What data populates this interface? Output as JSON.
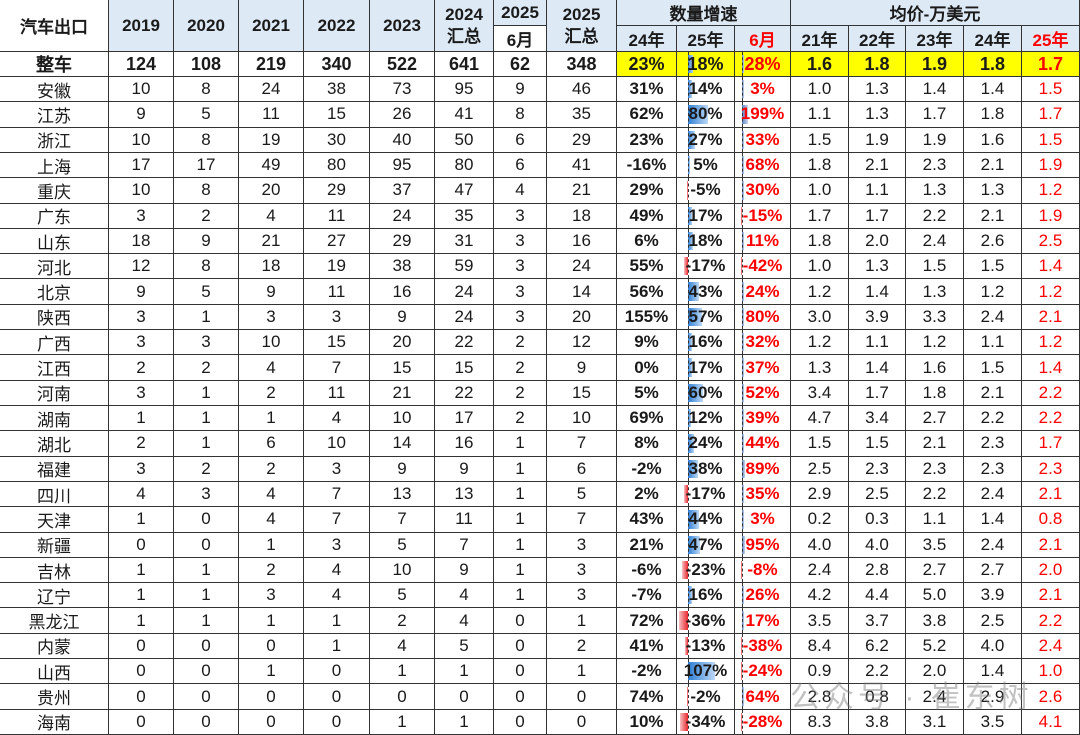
{
  "chart_data": {
    "type": "table",
    "corner_label": "汽车出口",
    "year_headers": [
      "2019",
      "2020",
      "2021",
      "2022",
      "2023"
    ],
    "col_2024": {
      "top": "2024",
      "bottom": "汇总"
    },
    "col_2025_jun": {
      "top": "2025",
      "bottom": "6月"
    },
    "col_2025": {
      "top": "2025",
      "bottom": "汇总"
    },
    "growth_group": "数量增速",
    "growth_headers": [
      "24年",
      "25年",
      "6月"
    ],
    "price_group": "均价-万美元",
    "price_headers": [
      "21年",
      "22年",
      "23年",
      "24年",
      "25年"
    ],
    "highlight_color": "#ffff00",
    "accent_red": "#ff0000",
    "header_bg": "#dde9f5",
    "rows": [
      {
        "name": "整车",
        "vals": [
          "124",
          "108",
          "219",
          "340",
          "522",
          "641",
          "62",
          "348"
        ],
        "g": [
          "23%",
          "18%",
          "28%"
        ],
        "p": [
          "1.6",
          "1.8",
          "1.9",
          "1.8",
          "1.7"
        ]
      },
      {
        "name": "安徽",
        "vals": [
          "10",
          "8",
          "24",
          "38",
          "73",
          "95",
          "9",
          "46"
        ],
        "g": [
          "31%",
          "14%",
          "3%"
        ],
        "p": [
          "1.0",
          "1.3",
          "1.4",
          "1.4",
          "1.5"
        ]
      },
      {
        "name": "江苏",
        "vals": [
          "9",
          "5",
          "11",
          "15",
          "26",
          "41",
          "8",
          "35"
        ],
        "g": [
          "62%",
          "80%",
          "199%"
        ],
        "p": [
          "1.1",
          "1.3",
          "1.7",
          "1.8",
          "1.7"
        ]
      },
      {
        "name": "浙江",
        "vals": [
          "10",
          "8",
          "19",
          "30",
          "40",
          "50",
          "6",
          "29"
        ],
        "g": [
          "23%",
          "27%",
          "33%"
        ],
        "p": [
          "1.5",
          "1.9",
          "1.9",
          "1.6",
          "1.5"
        ]
      },
      {
        "name": "上海",
        "vals": [
          "17",
          "17",
          "49",
          "80",
          "95",
          "80",
          "6",
          "41"
        ],
        "g": [
          "-16%",
          "5%",
          "68%"
        ],
        "p": [
          "1.8",
          "2.1",
          "2.3",
          "2.1",
          "1.9"
        ]
      },
      {
        "name": "重庆",
        "vals": [
          "10",
          "8",
          "20",
          "29",
          "37",
          "47",
          "4",
          "21"
        ],
        "g": [
          "29%",
          "-5%",
          "30%"
        ],
        "p": [
          "1.0",
          "1.1",
          "1.3",
          "1.3",
          "1.2"
        ]
      },
      {
        "name": "广东",
        "vals": [
          "3",
          "2",
          "4",
          "11",
          "24",
          "35",
          "3",
          "18"
        ],
        "g": [
          "49%",
          "17%",
          "-15%"
        ],
        "p": [
          "1.7",
          "1.7",
          "2.2",
          "2.1",
          "1.9"
        ]
      },
      {
        "name": "山东",
        "vals": [
          "18",
          "9",
          "21",
          "27",
          "29",
          "31",
          "3",
          "16"
        ],
        "g": [
          "6%",
          "18%",
          "11%"
        ],
        "p": [
          "1.8",
          "2.0",
          "2.4",
          "2.6",
          "2.5"
        ]
      },
      {
        "name": "河北",
        "vals": [
          "12",
          "8",
          "18",
          "19",
          "38",
          "59",
          "3",
          "24"
        ],
        "g": [
          "55%",
          "-17%",
          "-42%"
        ],
        "p": [
          "1.0",
          "1.3",
          "1.5",
          "1.5",
          "1.4"
        ]
      },
      {
        "name": "北京",
        "vals": [
          "9",
          "5",
          "9",
          "11",
          "16",
          "24",
          "3",
          "14"
        ],
        "g": [
          "56%",
          "43%",
          "24%"
        ],
        "p": [
          "1.2",
          "1.4",
          "1.3",
          "1.2",
          "1.2"
        ]
      },
      {
        "name": "陕西",
        "vals": [
          "3",
          "1",
          "3",
          "3",
          "9",
          "24",
          "3",
          "20"
        ],
        "g": [
          "155%",
          "57%",
          "80%"
        ],
        "p": [
          "3.0",
          "3.9",
          "3.3",
          "2.4",
          "2.1"
        ]
      },
      {
        "name": "广西",
        "vals": [
          "3",
          "3",
          "10",
          "15",
          "20",
          "22",
          "2",
          "12"
        ],
        "g": [
          "9%",
          "16%",
          "32%"
        ],
        "p": [
          "1.2",
          "1.1",
          "1.2",
          "1.1",
          "1.2"
        ]
      },
      {
        "name": "江西",
        "vals": [
          "2",
          "2",
          "4",
          "7",
          "15",
          "15",
          "2",
          "9"
        ],
        "g": [
          "0%",
          "17%",
          "37%"
        ],
        "p": [
          "1.3",
          "1.4",
          "1.6",
          "1.5",
          "1.4"
        ]
      },
      {
        "name": "河南",
        "vals": [
          "3",
          "1",
          "2",
          "11",
          "21",
          "22",
          "2",
          "15"
        ],
        "g": [
          "5%",
          "60%",
          "52%"
        ],
        "p": [
          "3.4",
          "1.7",
          "1.8",
          "2.1",
          "2.2"
        ]
      },
      {
        "name": "湖南",
        "vals": [
          "1",
          "1",
          "1",
          "4",
          "10",
          "17",
          "2",
          "10"
        ],
        "g": [
          "69%",
          "12%",
          "39%"
        ],
        "p": [
          "4.7",
          "3.4",
          "2.7",
          "2.2",
          "2.2"
        ]
      },
      {
        "name": "湖北",
        "vals": [
          "2",
          "1",
          "6",
          "10",
          "14",
          "16",
          "1",
          "7"
        ],
        "g": [
          "8%",
          "24%",
          "44%"
        ],
        "p": [
          "1.5",
          "1.5",
          "2.1",
          "2.3",
          "1.7"
        ]
      },
      {
        "name": "福建",
        "vals": [
          "3",
          "2",
          "2",
          "3",
          "9",
          "9",
          "1",
          "6"
        ],
        "g": [
          "-2%",
          "38%",
          "89%"
        ],
        "p": [
          "2.5",
          "2.3",
          "2.3",
          "2.3",
          "2.3"
        ]
      },
      {
        "name": "四川",
        "vals": [
          "4",
          "3",
          "4",
          "7",
          "13",
          "13",
          "1",
          "5"
        ],
        "g": [
          "2%",
          "-17%",
          "35%"
        ],
        "p": [
          "2.9",
          "2.5",
          "2.2",
          "2.4",
          "2.1"
        ]
      },
      {
        "name": "天津",
        "vals": [
          "1",
          "0",
          "4",
          "7",
          "7",
          "11",
          "1",
          "7"
        ],
        "g": [
          "43%",
          "44%",
          "3%"
        ],
        "p": [
          "0.2",
          "0.3",
          "1.1",
          "1.4",
          "0.8"
        ]
      },
      {
        "name": "新疆",
        "vals": [
          "0",
          "0",
          "1",
          "3",
          "5",
          "7",
          "1",
          "3"
        ],
        "g": [
          "21%",
          "47%",
          "95%"
        ],
        "p": [
          "4.0",
          "4.0",
          "3.5",
          "2.4",
          "2.1"
        ]
      },
      {
        "name": "吉林",
        "vals": [
          "1",
          "1",
          "2",
          "4",
          "10",
          "9",
          "1",
          "3"
        ],
        "g": [
          "-6%",
          "-23%",
          "-8%"
        ],
        "p": [
          "2.4",
          "2.8",
          "2.7",
          "2.7",
          "2.0"
        ]
      },
      {
        "name": "辽宁",
        "vals": [
          "1",
          "1",
          "3",
          "4",
          "5",
          "4",
          "1",
          "3"
        ],
        "g": [
          "-7%",
          "16%",
          "26%"
        ],
        "p": [
          "4.2",
          "4.4",
          "5.0",
          "3.9",
          "2.1"
        ]
      },
      {
        "name": "黑龙江",
        "vals": [
          "1",
          "1",
          "1",
          "1",
          "2",
          "4",
          "0",
          "1"
        ],
        "g": [
          "72%",
          "-36%",
          "17%"
        ],
        "p": [
          "3.5",
          "3.7",
          "3.8",
          "2.5",
          "2.2"
        ]
      },
      {
        "name": "内蒙",
        "vals": [
          "0",
          "0",
          "0",
          "1",
          "4",
          "5",
          "0",
          "2"
        ],
        "g": [
          "41%",
          "-13%",
          "-38%"
        ],
        "p": [
          "8.4",
          "6.2",
          "5.2",
          "4.0",
          "2.4"
        ]
      },
      {
        "name": "山西",
        "vals": [
          "0",
          "0",
          "1",
          "0",
          "1",
          "1",
          "0",
          "1"
        ],
        "g": [
          "-2%",
          "107%",
          "-24%"
        ],
        "p": [
          "0.9",
          "2.2",
          "2.0",
          "1.4",
          "1.0"
        ]
      },
      {
        "name": "贵州",
        "vals": [
          "0",
          "0",
          "0",
          "0",
          "0",
          "0",
          "0",
          "0"
        ],
        "g": [
          "74%",
          "-2%",
          "64%"
        ],
        "p": [
          "2.8",
          "0.8",
          "2.4",
          "2.9",
          "2.6"
        ]
      },
      {
        "name": "海南",
        "vals": [
          "0",
          "0",
          "0",
          "0",
          "1",
          "1",
          "0",
          "0"
        ],
        "g": [
          "10%",
          "-34%",
          "-28%"
        ],
        "p": [
          "8.3",
          "3.8",
          "3.1",
          "3.5",
          "4.1"
        ]
      }
    ]
  },
  "watermark": "公众号 · 崔东树"
}
